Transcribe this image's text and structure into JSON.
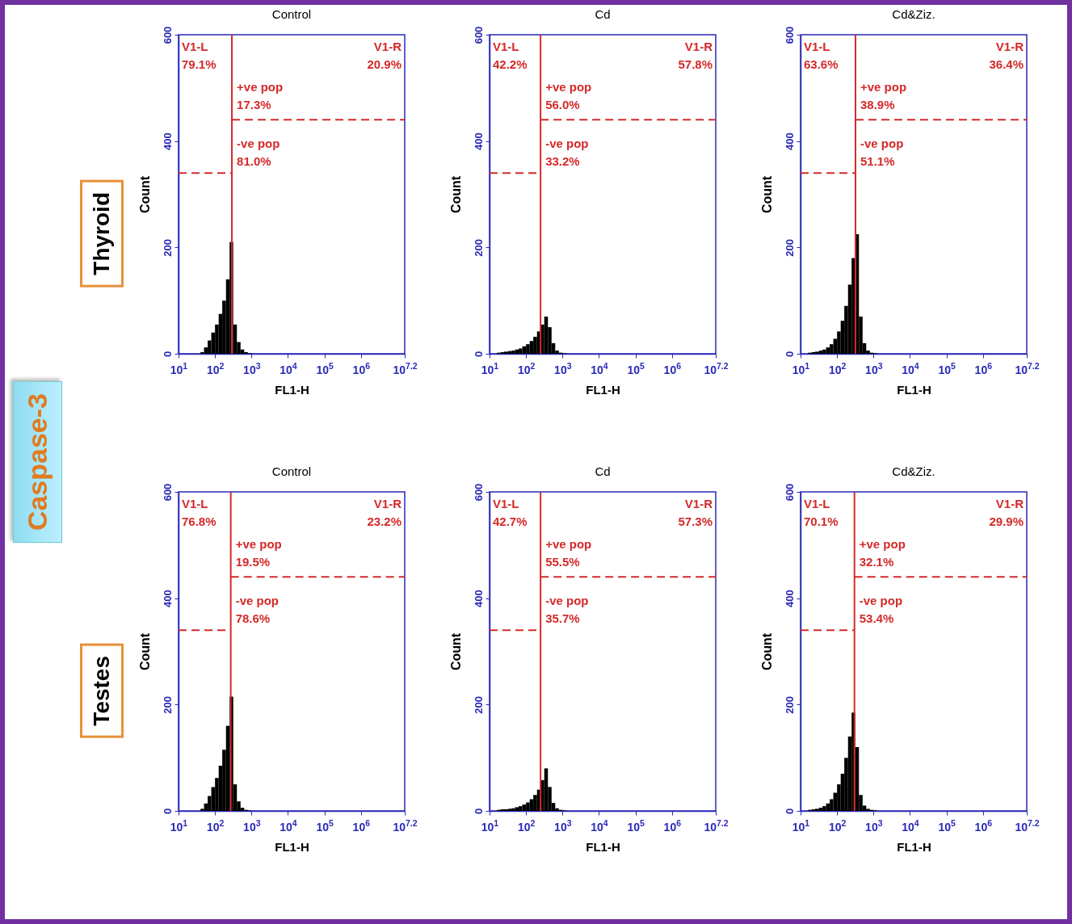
{
  "chart_data": [
    {
      "type": "histogram",
      "title": "Control",
      "xlabel": "FL1-H",
      "ylabel": "Count",
      "log": "x",
      "xlim": [
        10,
        15848932
      ],
      "xticks": [
        {
          "value": 10,
          "label": "10$^{1}$"
        },
        {
          "value": 100,
          "label": "10$^{2}$"
        },
        {
          "value": 1000,
          "label": "10$^{3}$"
        },
        {
          "value": 10000,
          "label": "10$^{4}$"
        },
        {
          "value": 100000,
          "label": "10$^{5}$"
        },
        {
          "value": 1000000,
          "label": "10$^{6}$"
        },
        {
          "value": 15848932,
          "label": "10$^{7.2}$"
        }
      ],
      "ylim": [
        0,
        600
      ],
      "yticks": [
        0,
        200,
        400,
        600
      ],
      "color": "#000000",
      "bins": [
        16,
        20,
        25,
        32,
        40,
        50,
        63,
        79,
        100,
        126,
        158,
        200,
        251,
        316,
        398,
        501,
        631,
        794,
        1000,
        1259
      ],
      "values": [
        0,
        0,
        0,
        0,
        3,
        12,
        25,
        40,
        55,
        75,
        100,
        140,
        210,
        55,
        22,
        8,
        3,
        1,
        0
      ],
      "series": [
        {
          "type": "line",
          "x": [
            10,
            290
          ],
          "values": [
            340,
            340
          ],
          "color": "#d42a2a",
          "line_style": "dashed"
        },
        {
          "type": "line",
          "x": [
            290,
            15848932
          ],
          "values": [
            440,
            440
          ],
          "color": "#d42a2a",
          "line_style": "dashed"
        }
      ],
      "ref_lines": [
        {
          "axis": "x",
          "value": 290,
          "color": "#d42a2a"
        }
      ],
      "annotations": [
        "Caspase-3",
        "Thyroid",
        "V1-L\n79.1%",
        "V1-R\n20.9%",
        "+ve pop\n17.3%",
        "-ve pop\n81.0%"
      ]
    },
    {
      "type": "histogram",
      "title": "Cd",
      "xlabel": "FL1-H",
      "ylabel": "Count",
      "log": "x",
      "xlim": [
        10,
        15848932
      ],
      "xticks": [
        {
          "value": 10,
          "label": "10$^{1}$"
        },
        {
          "value": 100,
          "label": "10$^{2}$"
        },
        {
          "value": 1000,
          "label": "10$^{3}$"
        },
        {
          "value": 10000,
          "label": "10$^{4}$"
        },
        {
          "value": 100000,
          "label": "10$^{5}$"
        },
        {
          "value": 1000000,
          "label": "10$^{6}$"
        },
        {
          "value": 15848932,
          "label": "10$^{7.2}$"
        }
      ],
      "ylim": [
        0,
        600
      ],
      "yticks": [
        0,
        200,
        400,
        600
      ],
      "color": "#000000",
      "bins": [
        16,
        20,
        25,
        32,
        40,
        50,
        63,
        79,
        100,
        126,
        158,
        200,
        251,
        316,
        398,
        501,
        631,
        794,
        1000,
        1259
      ],
      "values": [
        2,
        3,
        4,
        5,
        6,
        8,
        10,
        14,
        18,
        24,
        32,
        42,
        55,
        70,
        50,
        20,
        6,
        2,
        1
      ],
      "series": [
        {
          "type": "line",
          "x": [
            10,
            250
          ],
          "values": [
            340,
            340
          ],
          "color": "#d42a2a",
          "line_style": "dashed"
        },
        {
          "type": "line",
          "x": [
            250,
            15848932
          ],
          "values": [
            440,
            440
          ],
          "color": "#d42a2a",
          "line_style": "dashed"
        }
      ],
      "ref_lines": [
        {
          "axis": "x",
          "value": 250,
          "color": "#d42a2a"
        }
      ],
      "annotations": [
        "V1-L\n42.2%",
        "V1-R\n57.8%",
        "+ve pop\n56.0%",
        "-ve pop\n33.2%"
      ]
    },
    {
      "type": "histogram",
      "title": "Cd&Ziz.",
      "xlabel": "FL1-H",
      "ylabel": "Count",
      "log": "x",
      "xlim": [
        10,
        15848932
      ],
      "xticks": [
        {
          "value": 10,
          "label": "10$^{1}$"
        },
        {
          "value": 100,
          "label": "10$^{2}$"
        },
        {
          "value": 1000,
          "label": "10$^{3}$"
        },
        {
          "value": 10000,
          "label": "10$^{4}$"
        },
        {
          "value": 100000,
          "label": "10$^{5}$"
        },
        {
          "value": 1000000,
          "label": "10$^{6}$"
        },
        {
          "value": 15848932,
          "label": "10$^{7.2}$"
        }
      ],
      "ylim": [
        0,
        600
      ],
      "yticks": [
        0,
        200,
        400,
        600
      ],
      "color": "#000000",
      "bins": [
        16,
        20,
        25,
        32,
        40,
        50,
        63,
        79,
        100,
        126,
        158,
        200,
        251,
        316,
        398,
        501,
        631,
        794,
        1000,
        1259
      ],
      "values": [
        2,
        3,
        4,
        6,
        8,
        12,
        18,
        28,
        42,
        62,
        90,
        130,
        180,
        225,
        70,
        20,
        6,
        2,
        1
      ],
      "series": [
        {
          "type": "line",
          "x": [
            10,
            320
          ],
          "values": [
            340,
            340
          ],
          "color": "#d42a2a",
          "line_style": "dashed"
        },
        {
          "type": "line",
          "x": [
            320,
            15848932
          ],
          "values": [
            440,
            440
          ],
          "color": "#d42a2a",
          "line_style": "dashed"
        }
      ],
      "ref_lines": [
        {
          "axis": "x",
          "value": 320,
          "color": "#d42a2a"
        }
      ],
      "annotations": [
        "V1-L\n63.6%",
        "V1-R\n36.4%",
        "+ve pop\n38.9%",
        "-ve pop\n51.1%"
      ]
    },
    {
      "type": "histogram",
      "title": "Control",
      "xlabel": "FL1-H",
      "ylabel": "Count",
      "log": "x",
      "xlim": [
        10,
        15848932
      ],
      "xticks": [
        {
          "value": 10,
          "label": "10$^{1}$"
        },
        {
          "value": 100,
          "label": "10$^{2}$"
        },
        {
          "value": 1000,
          "label": "10$^{3}$"
        },
        {
          "value": 10000,
          "label": "10$^{4}$"
        },
        {
          "value": 100000,
          "label": "10$^{5}$"
        },
        {
          "value": 1000000,
          "label": "10$^{6}$"
        },
        {
          "value": 15848932,
          "label": "10$^{7.2}$"
        }
      ],
      "ylim": [
        0,
        600
      ],
      "yticks": [
        0,
        200,
        400,
        600
      ],
      "color": "#000000",
      "bins": [
        16,
        20,
        25,
        32,
        40,
        50,
        63,
        79,
        100,
        126,
        158,
        200,
        251,
        316,
        398,
        501,
        631,
        794,
        1000,
        1259
      ],
      "values": [
        0,
        0,
        0,
        0,
        4,
        14,
        28,
        45,
        62,
        85,
        115,
        160,
        215,
        50,
        18,
        6,
        2,
        1,
        0
      ],
      "series": [
        {
          "type": "line",
          "x": [
            10,
            270
          ],
          "values": [
            340,
            340
          ],
          "color": "#d42a2a",
          "line_style": "dashed"
        },
        {
          "type": "line",
          "x": [
            270,
            15848932
          ],
          "values": [
            440,
            440
          ],
          "color": "#d42a2a",
          "line_style": "dashed"
        }
      ],
      "ref_lines": [
        {
          "axis": "x",
          "value": 270,
          "color": "#d42a2a"
        }
      ],
      "annotations": [
        "Testes",
        "V1-L\n76.8%",
        "V1-R\n23.2%",
        "+ve pop\n19.5%",
        "-ve pop\n78.6%"
      ]
    },
    {
      "type": "histogram",
      "title": "Cd",
      "xlabel": "FL1-H",
      "ylabel": "Count",
      "log": "x",
      "xlim": [
        10,
        15848932
      ],
      "xticks": [
        {
          "value": 10,
          "label": "10$^{1}$"
        },
        {
          "value": 100,
          "label": "10$^{2}$"
        },
        {
          "value": 1000,
          "label": "10$^{3}$"
        },
        {
          "value": 10000,
          "label": "10$^{4}$"
        },
        {
          "value": 100000,
          "label": "10$^{5}$"
        },
        {
          "value": 1000000,
          "label": "10$^{6}$"
        },
        {
          "value": 15848932,
          "label": "10$^{7.2}$"
        }
      ],
      "ylim": [
        0,
        600
      ],
      "yticks": [
        0,
        200,
        400,
        600
      ],
      "color": "#000000",
      "bins": [
        16,
        20,
        25,
        32,
        40,
        50,
        63,
        79,
        100,
        126,
        158,
        200,
        251,
        316,
        398,
        501,
        631,
        794,
        1000,
        1259
      ],
      "values": [
        2,
        3,
        3,
        4,
        5,
        7,
        9,
        12,
        16,
        22,
        30,
        40,
        58,
        80,
        45,
        15,
        5,
        2,
        1
      ],
      "series": [
        {
          "type": "line",
          "x": [
            10,
            250
          ],
          "values": [
            340,
            340
          ],
          "color": "#d42a2a",
          "line_style": "dashed"
        },
        {
          "type": "line",
          "x": [
            250,
            15848932
          ],
          "values": [
            440,
            440
          ],
          "color": "#d42a2a",
          "line_style": "dashed"
        }
      ],
      "ref_lines": [
        {
          "axis": "x",
          "value": 250,
          "color": "#d42a2a"
        }
      ],
      "annotations": [
        "V1-L\n42.7%",
        "V1-R\n57.3%",
        "+ve pop\n55.5%",
        "-ve pop\n35.7%"
      ]
    },
    {
      "type": "histogram",
      "title": "Cd&Ziz.",
      "xlabel": "FL1-H",
      "ylabel": "Count",
      "log": "x",
      "xlim": [
        10,
        15848932
      ],
      "xticks": [
        {
          "value": 10,
          "label": "10$^{1}$"
        },
        {
          "value": 100,
          "label": "10$^{2}$"
        },
        {
          "value": 1000,
          "label": "10$^{3}$"
        },
        {
          "value": 10000,
          "label": "10$^{4}$"
        },
        {
          "value": 100000,
          "label": "10$^{5}$"
        },
        {
          "value": 1000000,
          "label": "10$^{6}$"
        },
        {
          "value": 15848932,
          "label": "10$^{7.2}$"
        }
      ],
      "ylim": [
        0,
        600
      ],
      "yticks": [
        0,
        200,
        400,
        600
      ],
      "color": "#000000",
      "bins": [
        16,
        20,
        25,
        32,
        40,
        50,
        63,
        79,
        100,
        126,
        158,
        200,
        251,
        316,
        398,
        501,
        631,
        794,
        1000,
        1259
      ],
      "values": [
        2,
        3,
        4,
        6,
        9,
        14,
        22,
        34,
        50,
        70,
        100,
        140,
        185,
        120,
        30,
        10,
        4,
        2,
        1
      ],
      "series": [
        {
          "type": "line",
          "x": [
            10,
            300
          ],
          "values": [
            340,
            340
          ],
          "color": "#d42a2a",
          "line_style": "dashed"
        },
        {
          "type": "line",
          "x": [
            300,
            15848932
          ],
          "values": [
            440,
            440
          ],
          "color": "#d42a2a",
          "line_style": "dashed"
        }
      ],
      "ref_lines": [
        {
          "axis": "x",
          "value": 300,
          "color": "#d42a2a"
        }
      ],
      "annotations": [
        "V1-L\n70.1%",
        "V1-R\n29.9%",
        "+ve pop\n32.1%",
        "-ve pop\n53.4%"
      ]
    }
  ]
}
